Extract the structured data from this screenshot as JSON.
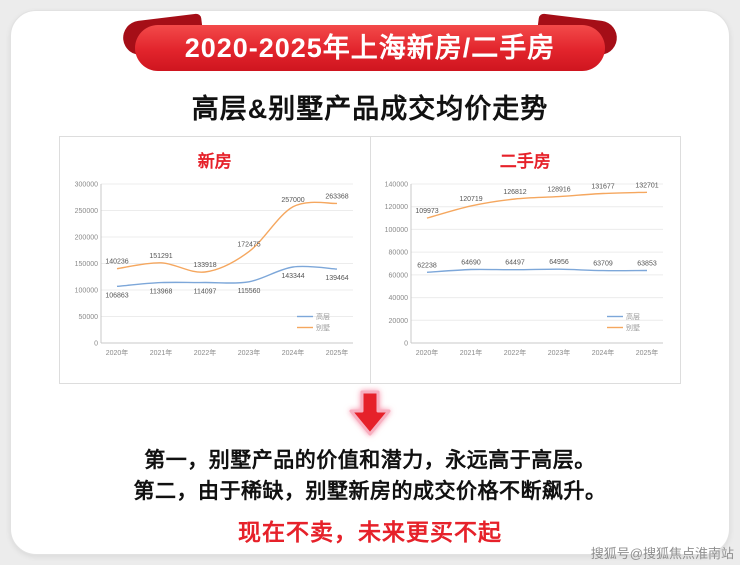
{
  "banner": {
    "title": "2020-2025年上海新房/二手房"
  },
  "page_title": "高层&别墅产品成交均价走势",
  "colors": {
    "accent": "#e6212a",
    "highrise": "#7da7d9",
    "villa": "#f5a75f"
  },
  "chart_data": [
    {
      "type": "line",
      "title": "新房",
      "categories": [
        "2020年",
        "2021年",
        "2022年",
        "2023年",
        "2024年",
        "2025年"
      ],
      "series": [
        {
          "name": "高层",
          "color": "#7da7d9",
          "label_pos": "below",
          "values": [
            106863,
            113968,
            114097,
            115560,
            143344,
            139464
          ]
        },
        {
          "name": "别墅",
          "color": "#f5a75f",
          "label_pos": "above",
          "values": [
            140236,
            151291,
            133918,
            172475,
            257000,
            263368
          ]
        }
      ],
      "ylim": [
        0,
        300000
      ],
      "ytick": 50000,
      "grid": true,
      "legend_position": "bottom-right"
    },
    {
      "type": "line",
      "title": "二手房",
      "categories": [
        "2020年",
        "2021年",
        "2022年",
        "2023年",
        "2024年",
        "2025年"
      ],
      "series": [
        {
          "name": "高层",
          "color": "#7da7d9",
          "label_pos": "above",
          "values": [
            62238,
            64690,
            64497,
            64956,
            63709,
            63853
          ]
        },
        {
          "name": "别墅",
          "color": "#f5a75f",
          "label_pos": "above",
          "values": [
            109973,
            120719,
            126812,
            128916,
            131677,
            132701
          ]
        }
      ],
      "ylim": [
        0,
        140000
      ],
      "ytick": 20000,
      "grid": true,
      "legend_position": "bottom-right"
    }
  ],
  "conclusions": {
    "line1": "第一，别墅产品的价值和潜力，永远高于高层。",
    "line2": "第二，由于稀缺，别墅新房的成交价格不断飙升。",
    "highlight": "现在不卖，未来更买不起"
  },
  "watermark": "搜狐号@搜狐焦点淮南站"
}
